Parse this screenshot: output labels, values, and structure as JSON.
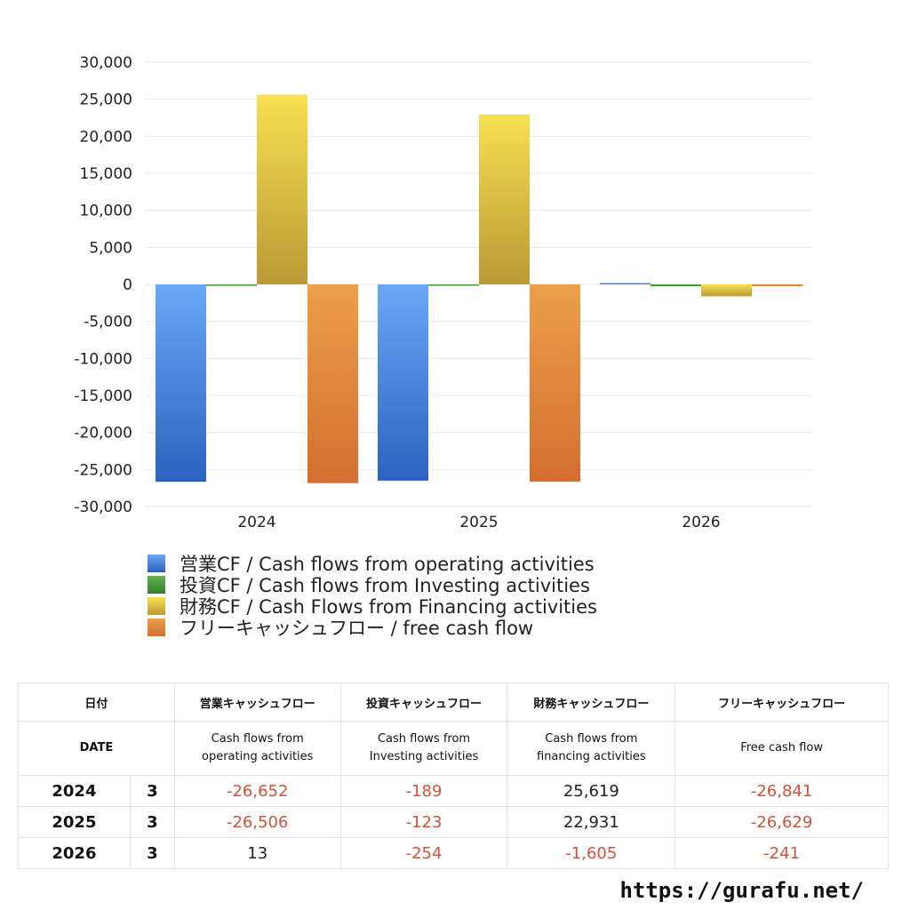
{
  "chart_data": {
    "type": "bar",
    "categories": [
      "2024",
      "2025",
      "2026"
    ],
    "series": [
      {
        "name": "営業CF / Cash flows from operating activities",
        "values": [
          -26652,
          -26506,
          13
        ],
        "color": "#3b78d6"
      },
      {
        "name": "投資CF / Cash flows from Investing activities",
        "values": [
          -189,
          -123,
          -254
        ],
        "color": "#4a9a3a"
      },
      {
        "name": "財務CF / Cash Flows from Financing activities",
        "values": [
          25619,
          22931,
          -1605
        ],
        "color": "#e6c93a"
      },
      {
        "name": "フリーキャッシュフロー / free cash flow",
        "values": [
          -26841,
          -26629,
          -241
        ],
        "color": "#e0823a"
      }
    ],
    "ylim": [
      -30000,
      30000
    ],
    "yticks": [
      "30,000",
      "25,000",
      "20,000",
      "15,000",
      "10,000",
      "5,000",
      "0",
      "-5,000",
      "-10,000",
      "-15,000",
      "-20,000",
      "-25,000",
      "-30,000"
    ],
    "title": "",
    "xlabel": "",
    "ylabel": "",
    "grid": true,
    "legend_position": "bottom"
  },
  "table": {
    "header1": [
      "日付",
      "",
      "営業キャッシュフロー",
      "投資キャッシュフロー",
      "財務キャッシュフロー",
      "フリーキャッシュフロー"
    ],
    "header2": [
      "DATE",
      "",
      "Cash flows from\noperating activities",
      "Cash flows from\nInvesting activities",
      "Cash flows from\nfinancing activities",
      "Free cash flow"
    ],
    "rows": [
      {
        "year": "2024",
        "month": "3",
        "op": "-26,652",
        "inv": "-189",
        "fin": "25,619",
        "fcf": "-26,841"
      },
      {
        "year": "2025",
        "month": "3",
        "op": "-26,506",
        "inv": "-123",
        "fin": "22,931",
        "fcf": "-26,629"
      },
      {
        "year": "2026",
        "month": "3",
        "op": "13",
        "inv": "-254",
        "fin": "-1,605",
        "fcf": "-241"
      }
    ]
  },
  "site_url": "https://gurafu.net/"
}
